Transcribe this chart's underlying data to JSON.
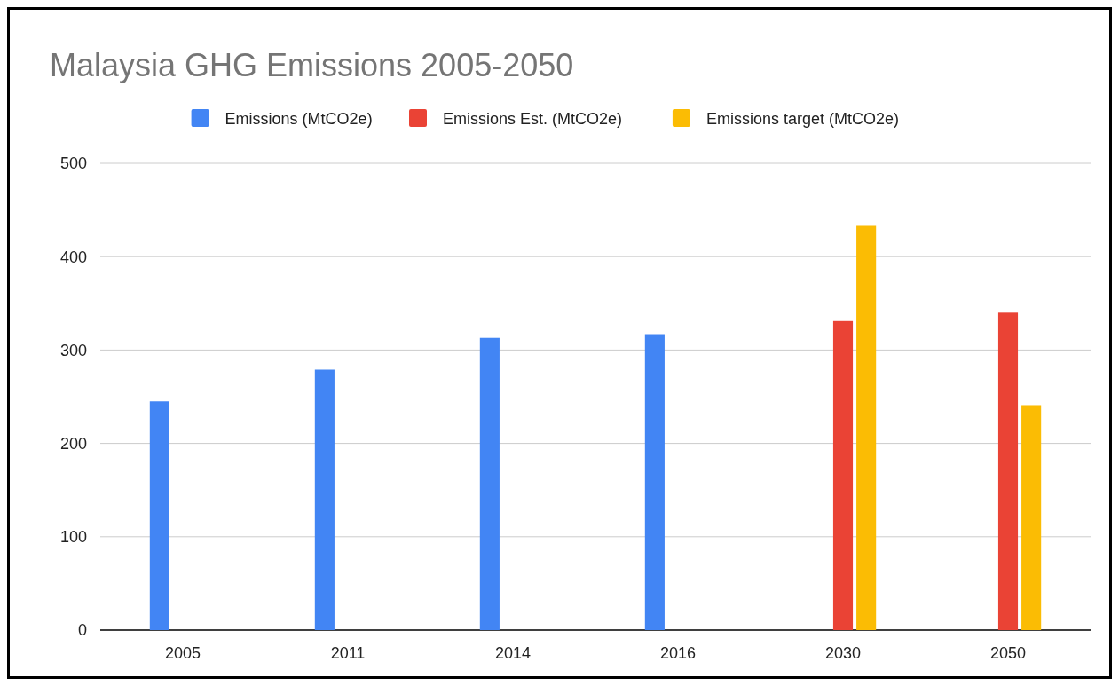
{
  "chart_data": {
    "type": "bar",
    "title": "Malaysia GHG Emissions 2005-2050",
    "categories": [
      "2005",
      "2011",
      "2014",
      "2016",
      "2030",
      "2050"
    ],
    "series": [
      {
        "name": "Emissions (MtCO2e)",
        "color": "#4285f4",
        "values": [
          245,
          279,
          313,
          317,
          null,
          null
        ]
      },
      {
        "name": "Emissions Est. (MtCO2e)",
        "color": "#ea4335",
        "values": [
          null,
          null,
          null,
          null,
          331,
          340
        ]
      },
      {
        "name": "Emissions target (MtCO2e)",
        "color": "#fbbc04",
        "values": [
          null,
          null,
          null,
          null,
          433,
          241
        ]
      }
    ],
    "ylim": [
      0,
      500
    ],
    "yticks": [
      0,
      100,
      200,
      300,
      400,
      500
    ],
    "grid": "y",
    "legend": "top"
  }
}
